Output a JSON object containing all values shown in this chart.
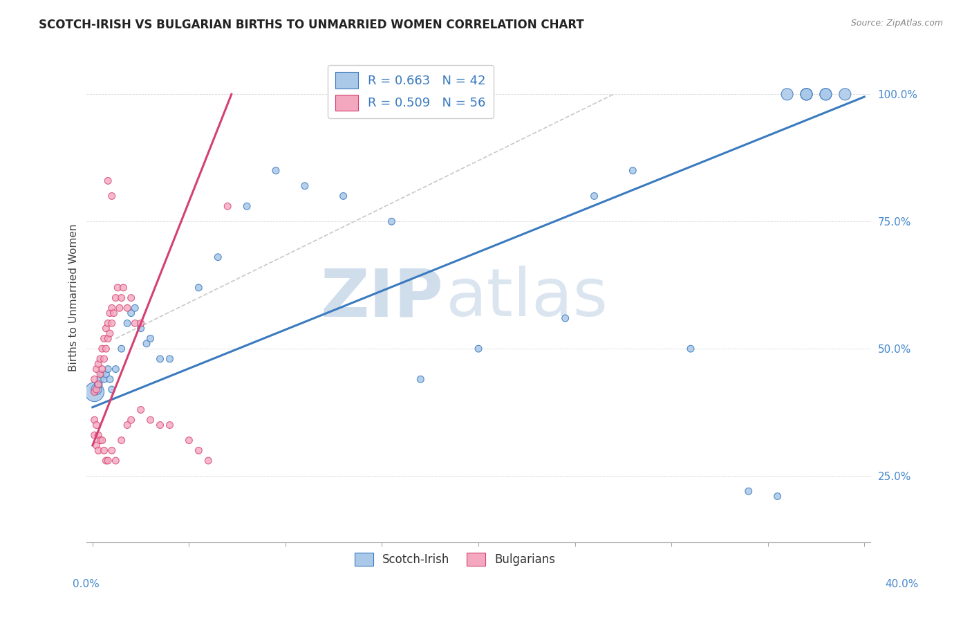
{
  "title": "SCOTCH-IRISH VS BULGARIAN BIRTHS TO UNMARRIED WOMEN CORRELATION CHART",
  "source": "Source: ZipAtlas.com",
  "ylabel": "Births to Unmarried Women",
  "scotch_irish_color": "#aac8e8",
  "bulgarian_color": "#f4a8c0",
  "blue_line_color": "#3a7abf",
  "pink_line_color": "#d44070",
  "gray_line_color": "#c8c8c8",
  "legend_color1": "#aac8e8",
  "legend_color2": "#f4a8c0",
  "legend_label1": "R = 0.663   N = 42",
  "legend_label2": "R = 0.509   N = 56",
  "ytick_color": "#4488cc",
  "si_x": [
    0.001,
    0.002,
    0.003,
    0.004,
    0.005,
    0.006,
    0.007,
    0.008,
    0.009,
    0.01,
    0.012,
    0.015,
    0.018,
    0.02,
    0.022,
    0.025,
    0.028,
    0.03,
    0.035,
    0.04,
    0.055,
    0.065,
    0.08,
    0.095,
    0.11,
    0.13,
    0.155,
    0.17,
    0.2,
    0.245,
    0.26,
    0.28,
    0.31,
    0.34,
    0.355,
    0.37,
    0.38,
    0.39,
    0.37,
    0.38,
    0.36,
    0.37
  ],
  "si_y": [
    0.415,
    0.42,
    0.43,
    0.44,
    0.45,
    0.44,
    0.45,
    0.46,
    0.44,
    0.42,
    0.46,
    0.5,
    0.55,
    0.57,
    0.58,
    0.54,
    0.51,
    0.52,
    0.48,
    0.48,
    0.62,
    0.68,
    0.78,
    0.85,
    0.82,
    0.8,
    0.75,
    0.44,
    0.5,
    0.56,
    0.8,
    0.85,
    0.5,
    0.22,
    0.21,
    1.0,
    1.0,
    1.0,
    1.0,
    1.0,
    1.0,
    1.0
  ],
  "si_sizes": [
    400,
    120,
    70,
    60,
    55,
    50,
    50,
    50,
    50,
    50,
    50,
    50,
    50,
    50,
    50,
    50,
    50,
    50,
    50,
    50,
    50,
    50,
    50,
    50,
    50,
    50,
    50,
    50,
    50,
    50,
    50,
    50,
    50,
    50,
    50,
    150,
    150,
    150,
    150,
    150,
    150,
    150
  ],
  "bg_x": [
    0.001,
    0.001,
    0.002,
    0.002,
    0.003,
    0.003,
    0.004,
    0.004,
    0.005,
    0.005,
    0.006,
    0.006,
    0.007,
    0.007,
    0.008,
    0.008,
    0.009,
    0.009,
    0.01,
    0.01,
    0.011,
    0.012,
    0.013,
    0.014,
    0.015,
    0.016,
    0.018,
    0.02,
    0.022,
    0.025,
    0.001,
    0.001,
    0.002,
    0.002,
    0.003,
    0.003,
    0.004,
    0.005,
    0.006,
    0.007,
    0.008,
    0.01,
    0.012,
    0.015,
    0.018,
    0.02,
    0.025,
    0.03,
    0.035,
    0.04,
    0.05,
    0.055,
    0.06,
    0.07,
    0.008,
    0.01
  ],
  "bg_y": [
    0.415,
    0.44,
    0.42,
    0.46,
    0.43,
    0.47,
    0.45,
    0.48,
    0.46,
    0.5,
    0.48,
    0.52,
    0.5,
    0.54,
    0.52,
    0.55,
    0.53,
    0.57,
    0.55,
    0.58,
    0.57,
    0.6,
    0.62,
    0.58,
    0.6,
    0.62,
    0.58,
    0.6,
    0.55,
    0.55,
    0.36,
    0.33,
    0.35,
    0.31,
    0.33,
    0.3,
    0.32,
    0.32,
    0.3,
    0.28,
    0.28,
    0.3,
    0.28,
    0.32,
    0.35,
    0.36,
    0.38,
    0.36,
    0.35,
    0.35,
    0.32,
    0.3,
    0.28,
    0.78,
    0.83,
    0.8
  ],
  "bg_sizes": [
    50,
    50,
    50,
    50,
    50,
    50,
    50,
    50,
    50,
    50,
    50,
    50,
    50,
    50,
    50,
    50,
    50,
    50,
    50,
    50,
    50,
    50,
    50,
    50,
    50,
    50,
    50,
    50,
    50,
    50,
    50,
    50,
    50,
    50,
    50,
    50,
    50,
    50,
    50,
    50,
    50,
    50,
    50,
    50,
    50,
    50,
    50,
    50,
    50,
    50,
    50,
    50,
    50,
    50,
    50,
    50
  ],
  "blue_line_x": [
    0.0,
    0.4
  ],
  "blue_line_y": [
    0.385,
    0.995
  ],
  "pink_line_x": [
    0.0,
    0.072
  ],
  "pink_line_y": [
    0.31,
    1.0
  ],
  "gray_line_x": [
    0.012,
    0.27
  ],
  "gray_line_y": [
    0.52,
    1.0
  ],
  "xlim": [
    -0.003,
    0.403
  ],
  "ylim": [
    0.12,
    1.08
  ],
  "xmin_label": "0.0%",
  "xmax_label": "40.0%"
}
